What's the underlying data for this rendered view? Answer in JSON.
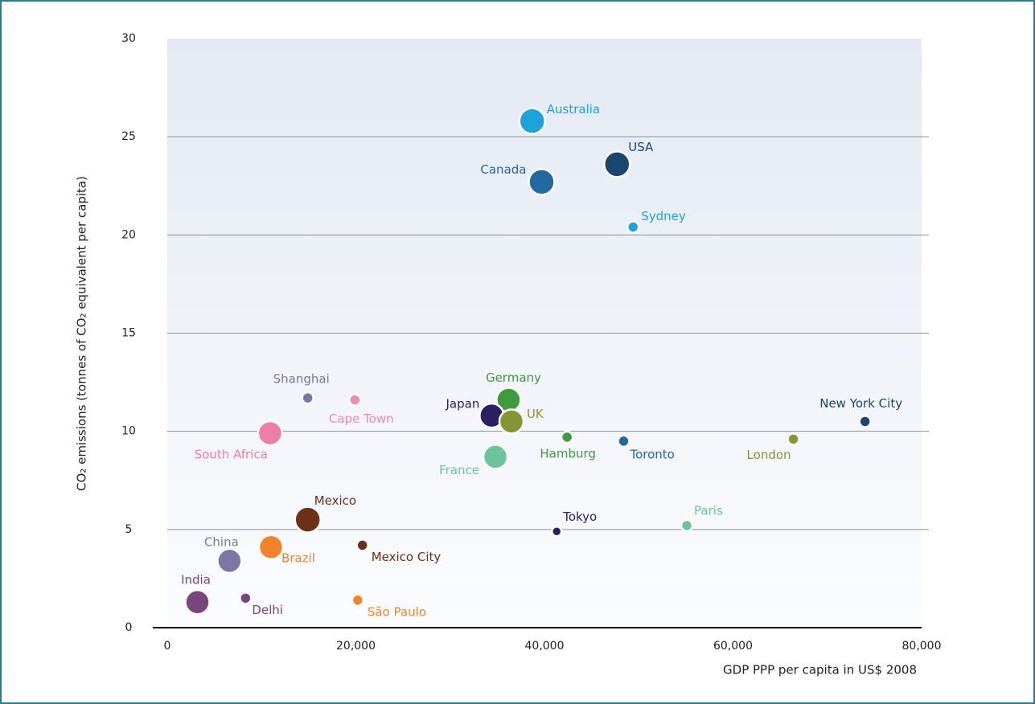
{
  "chart_data": {
    "type": "scatter",
    "xlabel": "GDP PPP per capita in US$ 2008",
    "ylabel": "CO₂ emissions (tonnes of CO₂ equivalent per capita)",
    "xlim": [
      0,
      80000
    ],
    "ylim": [
      0,
      30
    ],
    "xticks": [
      0,
      {
        "value": 20000,
        "label": "20,000"
      },
      {
        "value": 40000,
        "label": "40,000"
      },
      {
        "value": 60000,
        "label": "60,000"
      },
      {
        "value": 80000,
        "label": "80,000"
      }
    ],
    "yticks": [
      0,
      5,
      10,
      15,
      20,
      25,
      30
    ],
    "grid": true,
    "series": [
      {
        "name": "Australia",
        "color": "#1ba3dc",
        "x": 38700,
        "y": 25.8,
        "size": 16
      },
      {
        "name": "USA",
        "color": "#1a4670",
        "x": 47700,
        "y": 23.6,
        "size": 16
      },
      {
        "name": "Canada",
        "color": "#2369a1",
        "x": 39700,
        "y": 22.7,
        "size": 16
      },
      {
        "name": "Sydney",
        "color": "#1ba3dc",
        "x": 49400,
        "y": 20.4,
        "size": 7
      },
      {
        "name": "Shanghai",
        "color": "#7b76a6",
        "x": 14900,
        "y": 11.7,
        "size": 7
      },
      {
        "name": "Cape Town",
        "color": "#f08bab",
        "x": 19900,
        "y": 11.6,
        "size": 7
      },
      {
        "name": "South Africa",
        "color": "#ef7ea4",
        "x": 10900,
        "y": 9.9,
        "size": 15
      },
      {
        "name": "Germany",
        "color": "#3f9b40",
        "x": 36200,
        "y": 11.6,
        "size": 15
      },
      {
        "name": "Japan",
        "color": "#2b2060",
        "x": 34400,
        "y": 10.8,
        "size": 15
      },
      {
        "name": "UK",
        "color": "#889535",
        "x": 36500,
        "y": 10.5,
        "size": 15
      },
      {
        "name": "France",
        "color": "#6cc59a",
        "x": 34800,
        "y": 8.7,
        "size": 15
      },
      {
        "name": "Hamburg",
        "color": "#3f9b40",
        "x": 42400,
        "y": 9.7,
        "size": 7
      },
      {
        "name": "Toronto",
        "color": "#2369a1",
        "x": 48400,
        "y": 9.5,
        "size": 7
      },
      {
        "name": "London",
        "color": "#889535",
        "x": 66400,
        "y": 9.6,
        "size": 7
      },
      {
        "name": "New York City",
        "color": "#1a4670",
        "x": 74000,
        "y": 10.5,
        "size": 7
      },
      {
        "name": "Mexico",
        "color": "#6b3218",
        "x": 14900,
        "y": 5.5,
        "size": 16
      },
      {
        "name": "Tokyo",
        "color": "#2b2060",
        "x": 41300,
        "y": 4.9,
        "size": 6
      },
      {
        "name": "Paris",
        "color": "#6cc59a",
        "x": 55100,
        "y": 5.2,
        "size": 7
      },
      {
        "name": "China",
        "color": "#7b76a6",
        "x": 6600,
        "y": 3.4,
        "size": 15
      },
      {
        "name": "Brazil",
        "color": "#f3822c",
        "x": 11000,
        "y": 4.1,
        "size": 15
      },
      {
        "name": "Mexico City",
        "color": "#6b3218",
        "x": 20700,
        "y": 4.2,
        "size": 7
      },
      {
        "name": "India",
        "color": "#78457f",
        "x": 3200,
        "y": 1.3,
        "size": 15
      },
      {
        "name": "Delhi",
        "color": "#78457f",
        "x": 8300,
        "y": 1.5,
        "size": 7
      },
      {
        "name": "São Paulo",
        "color": "#f3822c",
        "x": 20200,
        "y": 1.4,
        "size": 7
      }
    ]
  }
}
